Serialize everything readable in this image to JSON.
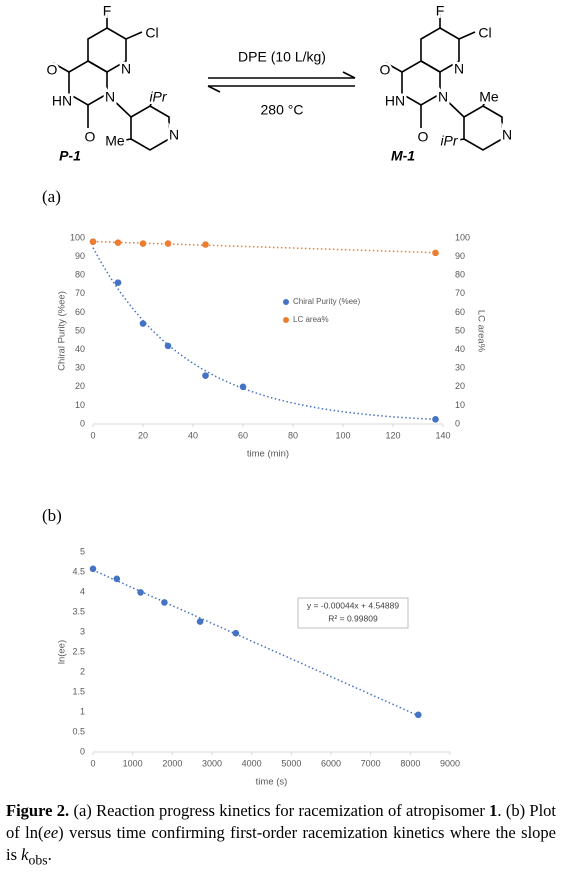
{
  "scheme": {
    "reactant": {
      "atoms": [
        "F",
        "Cl",
        "N",
        "O",
        "HN",
        "N",
        "iPr",
        "O",
        "Me",
        "N"
      ],
      "label": "P-1"
    },
    "conditions_above": "DPE (10 L/kg)",
    "conditions_below": "280 °C",
    "product": {
      "atoms": [
        "F",
        "Cl",
        "N",
        "O",
        "HN",
        "N",
        "Me",
        "O",
        "iPr",
        "N"
      ],
      "label": "M-1"
    }
  },
  "panel_labels": [
    "(a)",
    "(b)"
  ],
  "chart_data": [
    {
      "type": "scatter",
      "x_label": "time (min)",
      "y_label": "Chiral Purity (%ee)",
      "y2_label": "LC area%",
      "xlim": [
        0,
        140
      ],
      "xticks": [
        0,
        20,
        40,
        60,
        80,
        100,
        120,
        140
      ],
      "ylim": [
        0,
        100
      ],
      "yticks": [
        0,
        10,
        20,
        30,
        40,
        50,
        60,
        70,
        80,
        90,
        100
      ],
      "y2lim": [
        0,
        100
      ],
      "y2ticks": [
        0,
        10,
        20,
        30,
        40,
        50,
        60,
        70,
        80,
        90,
        100
      ],
      "grid": false,
      "legend": "center-right",
      "series": [
        {
          "name": "Chiral Purity (%ee)",
          "color": "#4472c4",
          "trendline": "exponential",
          "x": [
            0,
            10,
            20,
            30,
            45,
            60,
            137
          ],
          "values": [
            98,
            76,
            54,
            42,
            26,
            20,
            2.5
          ]
        },
        {
          "name": "LC area%",
          "color": "#ed7d31",
          "axis": "y2",
          "trendline": "linear",
          "x": [
            0,
            10,
            20,
            30,
            45,
            137
          ],
          "values": [
            98,
            97.5,
            97,
            97,
            96.5,
            92
          ]
        }
      ]
    },
    {
      "type": "scatter",
      "x_label": "time (s)",
      "y_label": "ln(ee)",
      "xlim": [
        0,
        9000
      ],
      "xticks": [
        0,
        1000,
        2000,
        3000,
        4000,
        5000,
        6000,
        7000,
        8000,
        9000
      ],
      "ylim": [
        0,
        5
      ],
      "yticks": [
        0,
        0.5,
        1,
        1.5,
        2,
        2.5,
        3,
        3.5,
        4,
        4.5,
        5
      ],
      "grid": false,
      "annotations": [
        "y = -0.00044x + 4.54889",
        "R² = 0.99809"
      ],
      "series": [
        {
          "color": "#4472c4",
          "trendline": "linear",
          "x": [
            0,
            600,
            1200,
            1800,
            2700,
            3600,
            8200
          ],
          "values": [
            4.58,
            4.33,
            3.99,
            3.74,
            3.26,
            2.97,
            0.93
          ]
        }
      ]
    }
  ],
  "caption": {
    "label": "Figure 2.",
    "parts": [
      "(a) Reaction progress kinetics for racemization of atropisomer ",
      "1",
      ". (b) Plot of ln(",
      "ee",
      ") versus time confirming first-order racemization kinetics where the slope is ",
      "k",
      "obs",
      "."
    ]
  }
}
